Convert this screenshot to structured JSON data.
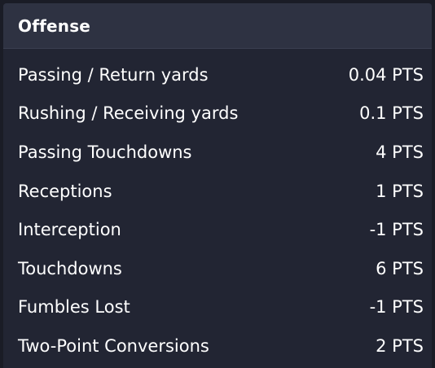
{
  "section": {
    "title": "Offense",
    "rows": [
      {
        "label": "Passing / Return yards",
        "value": "0.04 PTS"
      },
      {
        "label": "Rushing / Receiving yards",
        "value": "0.1 PTS"
      },
      {
        "label": "Passing Touchdowns",
        "value": "4 PTS"
      },
      {
        "label": "Receptions",
        "value": "1 PTS"
      },
      {
        "label": "Interception",
        "value": "-1 PTS"
      },
      {
        "label": "Touchdowns",
        "value": "6 PTS"
      },
      {
        "label": "Fumbles Lost",
        "value": "-1 PTS"
      },
      {
        "label": "Two-Point Conversions",
        "value": "2 PTS"
      }
    ]
  },
  "colors": {
    "page_background": "#1a1c26",
    "panel_background": "#222533",
    "header_background": "#2e3242",
    "text": "#ffffff"
  }
}
